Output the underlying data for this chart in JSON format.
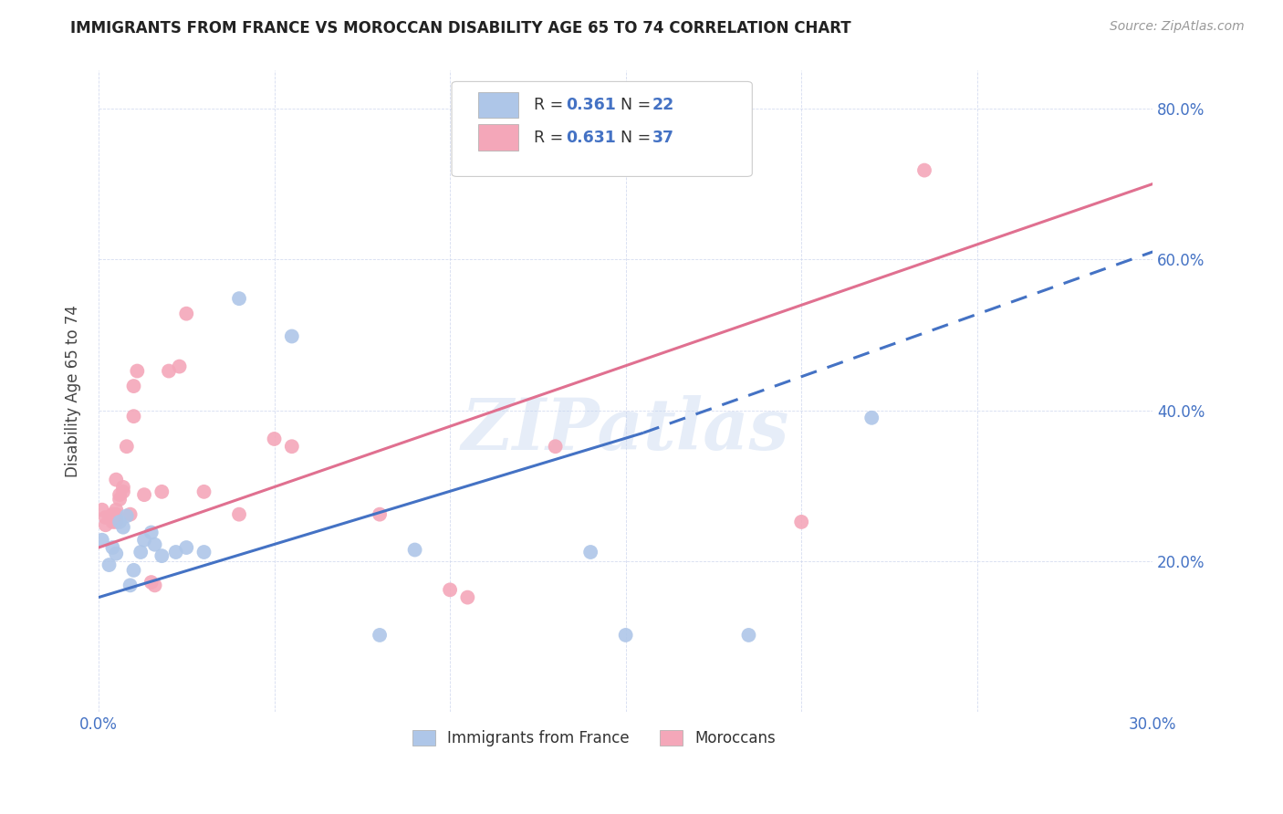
{
  "title": "IMMIGRANTS FROM FRANCE VS MOROCCAN DISABILITY AGE 65 TO 74 CORRELATION CHART",
  "source": "Source: ZipAtlas.com",
  "ylabel": "Disability Age 65 to 74",
  "xmin": 0.0,
  "xmax": 0.3,
  "ymin": 0.0,
  "ymax": 0.85,
  "xticks": [
    0.0,
    0.05,
    0.1,
    0.15,
    0.2,
    0.25,
    0.3
  ],
  "ytick_vals": [
    0.0,
    0.2,
    0.4,
    0.6,
    0.8
  ],
  "ytick_labels": [
    "",
    "20.0%",
    "40.0%",
    "60.0%",
    "80.0%"
  ],
  "france_color": "#aec6e8",
  "morocco_color": "#f4a7b9",
  "france_line_color": "#4472c4",
  "morocco_line_color": "#e07090",
  "axis_label_color": "#4472c4",
  "watermark": "ZIPatlas",
  "france_points": [
    [
      0.001,
      0.228
    ],
    [
      0.003,
      0.195
    ],
    [
      0.004,
      0.218
    ],
    [
      0.005,
      0.21
    ],
    [
      0.006,
      0.252
    ],
    [
      0.007,
      0.245
    ],
    [
      0.008,
      0.26
    ],
    [
      0.009,
      0.168
    ],
    [
      0.01,
      0.188
    ],
    [
      0.012,
      0.212
    ],
    [
      0.013,
      0.228
    ],
    [
      0.015,
      0.238
    ],
    [
      0.016,
      0.222
    ],
    [
      0.018,
      0.207
    ],
    [
      0.022,
      0.212
    ],
    [
      0.025,
      0.218
    ],
    [
      0.03,
      0.212
    ],
    [
      0.04,
      0.548
    ],
    [
      0.055,
      0.498
    ],
    [
      0.09,
      0.215
    ],
    [
      0.14,
      0.212
    ],
    [
      0.15,
      0.102
    ],
    [
      0.185,
      0.102
    ],
    [
      0.22,
      0.39
    ],
    [
      0.08,
      0.102
    ]
  ],
  "morocco_points": [
    [
      0.001,
      0.268
    ],
    [
      0.002,
      0.258
    ],
    [
      0.002,
      0.248
    ],
    [
      0.003,
      0.258
    ],
    [
      0.004,
      0.252
    ],
    [
      0.004,
      0.262
    ],
    [
      0.005,
      0.252
    ],
    [
      0.005,
      0.268
    ],
    [
      0.005,
      0.258
    ],
    [
      0.005,
      0.262
    ],
    [
      0.005,
      0.308
    ],
    [
      0.006,
      0.282
    ],
    [
      0.006,
      0.288
    ],
    [
      0.007,
      0.298
    ],
    [
      0.007,
      0.292
    ],
    [
      0.008,
      0.352
    ],
    [
      0.009,
      0.262
    ],
    [
      0.01,
      0.392
    ],
    [
      0.01,
      0.432
    ],
    [
      0.011,
      0.452
    ],
    [
      0.013,
      0.288
    ],
    [
      0.015,
      0.172
    ],
    [
      0.016,
      0.168
    ],
    [
      0.018,
      0.292
    ],
    [
      0.02,
      0.452
    ],
    [
      0.023,
      0.458
    ],
    [
      0.025,
      0.528
    ],
    [
      0.03,
      0.292
    ],
    [
      0.04,
      0.262
    ],
    [
      0.05,
      0.362
    ],
    [
      0.055,
      0.352
    ],
    [
      0.08,
      0.262
    ],
    [
      0.1,
      0.162
    ],
    [
      0.105,
      0.152
    ],
    [
      0.13,
      0.352
    ],
    [
      0.2,
      0.252
    ],
    [
      0.235,
      0.718
    ]
  ],
  "france_solid_line": [
    [
      0.0,
      0.152
    ],
    [
      0.155,
      0.37
    ]
  ],
  "france_dashed_line": [
    [
      0.155,
      0.37
    ],
    [
      0.3,
      0.61
    ]
  ],
  "morocco_trendline": [
    [
      0.0,
      0.218
    ],
    [
      0.3,
      0.7
    ]
  ]
}
